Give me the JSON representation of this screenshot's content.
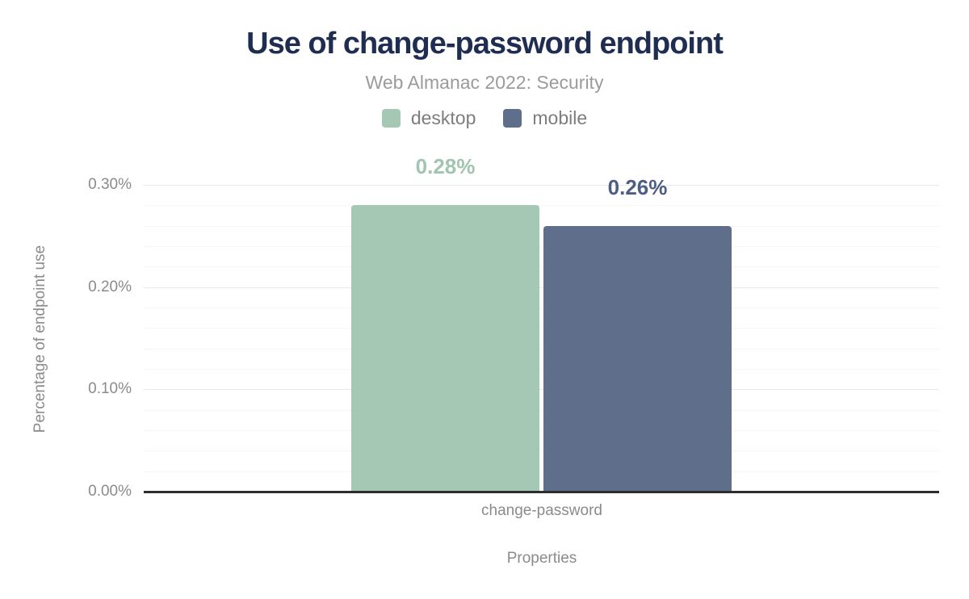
{
  "chart_data": {
    "type": "bar",
    "title": "Use of change-password endpoint",
    "subtitle": "Web Almanac 2022: Security",
    "categories": [
      "change-password"
    ],
    "series": [
      {
        "name": "desktop",
        "values": [
          0.28
        ],
        "value_labels": [
          "0.28%"
        ],
        "color": "#a5c8b4",
        "label_color": "#a1c5b1"
      },
      {
        "name": "mobile",
        "values": [
          0.26
        ],
        "value_labels": [
          "0.26%"
        ],
        "color": "#5f6e8a",
        "label_color": "#4d5e82"
      }
    ],
    "xlabel": "Properties",
    "ylabel": "Percentage of endpoint use",
    "ylim": [
      0,
      0.3
    ],
    "yticks": [
      {
        "value": 0.0,
        "label": "0.00%"
      },
      {
        "value": 0.1,
        "label": "0.10%"
      },
      {
        "value": 0.2,
        "label": "0.20%"
      },
      {
        "value": 0.3,
        "label": "0.30%"
      }
    ],
    "minor_tick_step": 0.02,
    "grid": true,
    "legend_position": "top",
    "colors": {
      "title_text": "#1e2d50",
      "subtitle_text": "#9b9b9b",
      "legend_text": "#7d7d7d",
      "axis_text": "#8b8b8b",
      "grid_minor": "#f5f5f5",
      "grid_major": "#e8e8e8",
      "axis_line": "#2e2e2e",
      "background": "#ffffff"
    }
  }
}
